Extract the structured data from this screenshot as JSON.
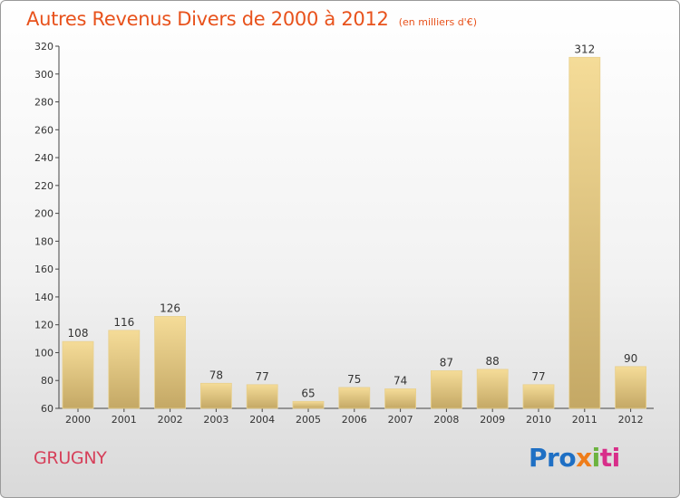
{
  "header": {
    "title": "Autres Revenus Divers de 2000 à 2012",
    "unit": "(en milliers d'€)"
  },
  "footer": {
    "commune": "GRUGNY",
    "logo_parts": [
      "Pro",
      "x",
      "i",
      "ti"
    ]
  },
  "colors": {
    "title": "#e8521c",
    "commune": "#d6405a",
    "bar_light": "#f5dc98",
    "bar_dark": "#c4a865"
  },
  "chart_data": {
    "type": "bar",
    "categories": [
      "2000",
      "2001",
      "2002",
      "2003",
      "2004",
      "2005",
      "2006",
      "2007",
      "2008",
      "2009",
      "2010",
      "2011",
      "2012"
    ],
    "values": [
      108,
      116,
      126,
      78,
      77,
      65,
      75,
      74,
      87,
      88,
      77,
      312,
      90
    ],
    "ylim": [
      60,
      320
    ],
    "yticks": [
      60,
      80,
      100,
      120,
      140,
      160,
      180,
      200,
      220,
      240,
      260,
      280,
      300,
      320
    ],
    "xlabel": "",
    "ylabel": "",
    "grid": false,
    "legend": "none"
  }
}
